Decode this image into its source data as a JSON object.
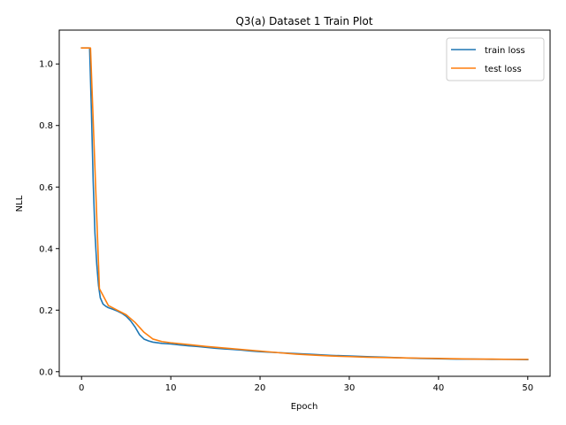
{
  "chart_data": {
    "type": "line",
    "title": "Q3(a) Dataset 1 Train Plot",
    "xlabel": "Epoch",
    "ylabel": "NLL",
    "xlim": [
      -2.5,
      52.5
    ],
    "ylim": [
      -0.015,
      1.11
    ],
    "xticks": [
      0,
      10,
      20,
      30,
      40,
      50
    ],
    "xtick_labels": [
      "0",
      "10",
      "20",
      "30",
      "40",
      "50"
    ],
    "yticks": [
      0.0,
      0.2,
      0.4,
      0.6,
      0.8,
      1.0
    ],
    "ytick_labels": [
      "0.0",
      "0.2",
      "0.4",
      "0.6",
      "0.8",
      "1.0"
    ],
    "grid": false,
    "legend_position": "top-right",
    "series": [
      {
        "name": "train loss",
        "color": "#1f77b4",
        "x": [
          0,
          0.9,
          1.1,
          1.3,
          1.5,
          1.7,
          1.9,
          2.1,
          2.4,
          2.7,
          3,
          3.5,
          4,
          4.5,
          5,
          5.5,
          6,
          6.5,
          7,
          7.5,
          8,
          9,
          10,
          11,
          12,
          13,
          14,
          15,
          16,
          17,
          18,
          19,
          20,
          22,
          24,
          26,
          28,
          30,
          32,
          34,
          36,
          38,
          40,
          42,
          44,
          46,
          48,
          50
        ],
        "y": [
          1.052,
          1.052,
          0.85,
          0.62,
          0.45,
          0.35,
          0.28,
          0.24,
          0.22,
          0.213,
          0.208,
          0.203,
          0.197,
          0.19,
          0.18,
          0.165,
          0.145,
          0.12,
          0.106,
          0.1,
          0.096,
          0.092,
          0.09,
          0.087,
          0.084,
          0.082,
          0.079,
          0.076,
          0.074,
          0.072,
          0.07,
          0.067,
          0.065,
          0.062,
          0.059,
          0.056,
          0.053,
          0.051,
          0.049,
          0.047,
          0.045,
          0.043,
          0.042,
          0.041,
          0.041,
          0.04,
          0.04,
          0.039
        ]
      },
      {
        "name": "test loss",
        "color": "#ff7f0e",
        "x": [
          0,
          1,
          2,
          3,
          4,
          5,
          6,
          7,
          8,
          9,
          10,
          12,
          14,
          16,
          18,
          20,
          22,
          24,
          26,
          28,
          30,
          32,
          34,
          36,
          38,
          40,
          42,
          44,
          46,
          48,
          50
        ],
        "y": [
          1.052,
          1.052,
          0.27,
          0.215,
          0.2,
          0.185,
          0.16,
          0.128,
          0.106,
          0.098,
          0.094,
          0.088,
          0.082,
          0.077,
          0.072,
          0.067,
          0.062,
          0.057,
          0.054,
          0.051,
          0.049,
          0.047,
          0.046,
          0.045,
          0.044,
          0.043,
          0.042,
          0.041,
          0.041,
          0.04,
          0.04
        ]
      }
    ]
  }
}
